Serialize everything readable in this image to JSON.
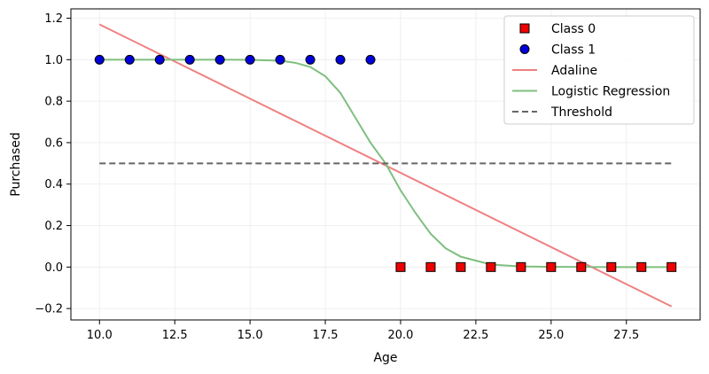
{
  "chart_data": {
    "type": "scatter",
    "title": "",
    "xlabel": "Age",
    "ylabel": "Purchased",
    "xlim": [
      9.05,
      29.95
    ],
    "ylim": [
      -0.255,
      1.245
    ],
    "xticks": [
      10.0,
      12.5,
      15.0,
      17.5,
      20.0,
      22.5,
      25.0,
      27.5
    ],
    "xtick_labels": [
      "10.0",
      "12.5",
      "15.0",
      "17.5",
      "20.0",
      "22.5",
      "25.0",
      "27.5"
    ],
    "yticks": [
      -0.2,
      0.0,
      0.2,
      0.4,
      0.6,
      0.8,
      1.0,
      1.2
    ],
    "ytick_labels": [
      "−0.2",
      "0.0",
      "0.2",
      "0.4",
      "0.6",
      "0.8",
      "1.0",
      "1.2"
    ],
    "grid": true,
    "legend_position": "top-right",
    "series": [
      {
        "name": "Class 0",
        "kind": "scatter",
        "marker": "square",
        "color": "#ee0000",
        "points": [
          [
            20,
            0
          ],
          [
            21,
            0
          ],
          [
            22,
            0
          ],
          [
            23,
            0
          ],
          [
            24,
            0
          ],
          [
            25,
            0
          ],
          [
            26,
            0
          ],
          [
            27,
            0
          ],
          [
            28,
            0
          ],
          [
            29,
            0
          ]
        ]
      },
      {
        "name": "Class 1",
        "kind": "scatter",
        "marker": "circle",
        "color": "#0000dd",
        "points": [
          [
            10,
            1
          ],
          [
            11,
            1
          ],
          [
            12,
            1
          ],
          [
            13,
            1
          ],
          [
            14,
            1
          ],
          [
            15,
            1
          ],
          [
            16,
            1
          ],
          [
            17,
            1
          ],
          [
            18,
            1
          ],
          [
            19,
            1
          ]
        ]
      },
      {
        "name": "Adaline",
        "kind": "line",
        "color": "#f08080",
        "points": [
          [
            10,
            1.17
          ],
          [
            29,
            -0.19
          ]
        ]
      },
      {
        "name": "Logistic Regression",
        "kind": "line",
        "color": "#7fbf7f",
        "points": [
          [
            10,
            1.0
          ],
          [
            12,
            1.0
          ],
          [
            14,
            1.0
          ],
          [
            15,
            0.999
          ],
          [
            16,
            0.995
          ],
          [
            16.5,
            0.985
          ],
          [
            17,
            0.965
          ],
          [
            17.5,
            0.92
          ],
          [
            18,
            0.84
          ],
          [
            18.5,
            0.72
          ],
          [
            19,
            0.6
          ],
          [
            19.5,
            0.5
          ],
          [
            20,
            0.37
          ],
          [
            20.5,
            0.26
          ],
          [
            21,
            0.16
          ],
          [
            21.5,
            0.09
          ],
          [
            22,
            0.05
          ],
          [
            23,
            0.012
          ],
          [
            24,
            0.003
          ],
          [
            25,
            0.001
          ],
          [
            27,
            0.0
          ],
          [
            29,
            0.0
          ]
        ]
      },
      {
        "name": "Threshold",
        "kind": "line",
        "dashed": true,
        "color": "#666666",
        "points": [
          [
            10,
            0.5
          ],
          [
            29,
            0.5
          ]
        ]
      }
    ]
  }
}
